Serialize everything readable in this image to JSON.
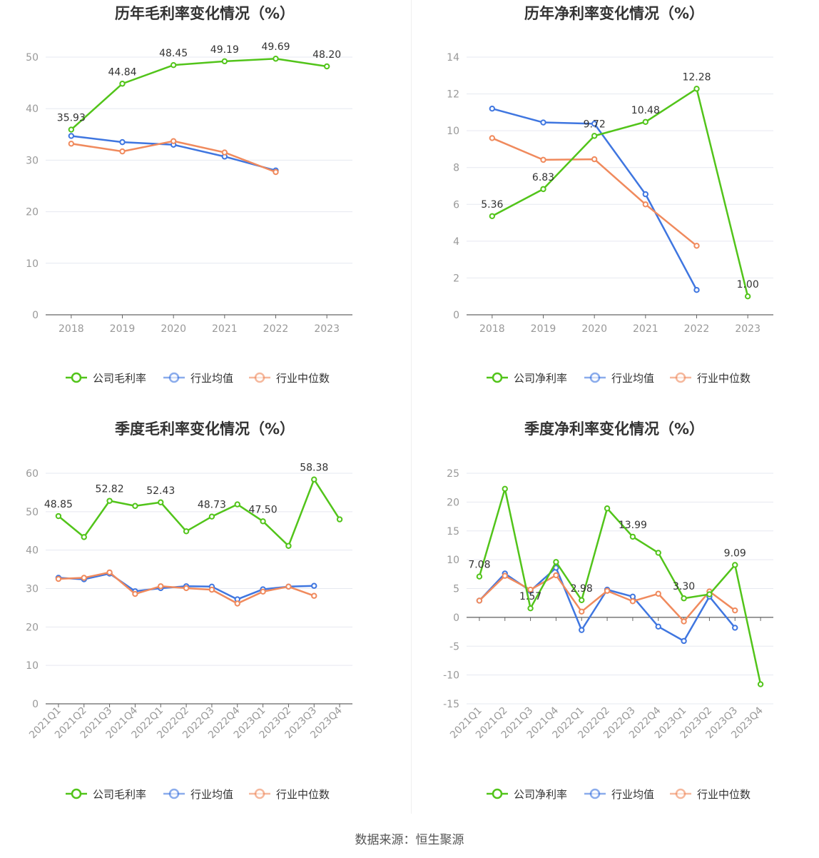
{
  "source": "数据来源：恒生聚源",
  "colors": {
    "company": "#52c41a",
    "avg": "#3f76e0",
    "median": "#f08a5d"
  },
  "legend": {
    "company_gross": "公司毛利率",
    "company_net": "公司净利率",
    "avg": "行业均值",
    "median": "行业中位数"
  },
  "chart_data": [
    {
      "type": "line",
      "title": "历年毛利率变化情况（%）",
      "x": [
        "2018",
        "2019",
        "2020",
        "2021",
        "2022",
        "2023"
      ],
      "ylim": [
        0,
        50
      ],
      "yticks": [
        0,
        10,
        20,
        30,
        40,
        50
      ],
      "grid": true,
      "legend_position": "bottom",
      "series": [
        {
          "name": "公司毛利率",
          "values": [
            35.93,
            44.84,
            48.45,
            49.19,
            49.69,
            48.2
          ],
          "labels": [
            "35.93",
            "44.84",
            "48.45",
            "49.19",
            "49.69",
            "48.20"
          ]
        },
        {
          "name": "行业均值",
          "values": [
            34.7,
            33.5,
            33.0,
            30.7,
            28.0,
            null
          ]
        },
        {
          "name": "行业中位数",
          "values": [
            33.2,
            31.7,
            33.7,
            31.5,
            27.7,
            null
          ]
        }
      ]
    },
    {
      "type": "line",
      "title": "历年净利率变化情况（%）",
      "x": [
        "2018",
        "2019",
        "2020",
        "2021",
        "2022",
        "2023"
      ],
      "ylim": [
        0,
        14
      ],
      "yticks": [
        0,
        2,
        4,
        6,
        8,
        10,
        12,
        14
      ],
      "grid": true,
      "legend_position": "bottom",
      "series": [
        {
          "name": "公司净利率",
          "values": [
            5.36,
            6.83,
            9.72,
            10.48,
            12.28,
            1.0
          ],
          "labels": [
            "5.36",
            "6.83",
            "9.72",
            "10.48",
            "12.28",
            "1.00"
          ]
        },
        {
          "name": "行业均值",
          "values": [
            11.2,
            10.45,
            10.38,
            6.55,
            1.35,
            null
          ]
        },
        {
          "name": "行业中位数",
          "values": [
            9.6,
            8.42,
            8.45,
            6.0,
            3.75,
            null
          ]
        }
      ]
    },
    {
      "type": "line",
      "title": "季度毛利率变化情况（%）",
      "x": [
        "2021Q1",
        "2021Q2",
        "2021Q3",
        "2021Q4",
        "2022Q1",
        "2022Q2",
        "2022Q3",
        "2022Q4",
        "2023Q1",
        "2023Q2",
        "2023Q3",
        "2023Q4"
      ],
      "ylim": [
        0,
        60
      ],
      "yticks": [
        0,
        10,
        20,
        30,
        40,
        50,
        60
      ],
      "grid": true,
      "legend_position": "bottom",
      "series": [
        {
          "name": "公司毛利率",
          "values": [
            48.85,
            43.4,
            52.82,
            51.5,
            52.43,
            44.9,
            48.73,
            51.9,
            47.5,
            41.1,
            58.38,
            48.0
          ],
          "labels": [
            "48.85",
            "",
            "52.82",
            "",
            "52.43",
            "",
            "48.73",
            "",
            "47.50",
            "",
            "58.38",
            ""
          ]
        },
        {
          "name": "行业均值",
          "values": [
            32.8,
            32.4,
            33.9,
            29.3,
            30.1,
            30.6,
            30.5,
            27.2,
            29.8,
            30.5,
            30.7,
            null
          ]
        },
        {
          "name": "行业中位数",
          "values": [
            32.5,
            32.8,
            34.2,
            28.6,
            30.6,
            30.1,
            29.7,
            26.1,
            29.2,
            30.5,
            28.1,
            null
          ]
        }
      ]
    },
    {
      "type": "line",
      "title": "季度净利率变化情况（%）",
      "x": [
        "2021Q1",
        "2021Q2",
        "2021Q3",
        "2021Q4",
        "2022Q1",
        "2022Q2",
        "2022Q3",
        "2022Q4",
        "2023Q1",
        "2023Q2",
        "2023Q3",
        "2023Q4"
      ],
      "ylim": [
        -15,
        25
      ],
      "yticks": [
        -15,
        -10,
        -5,
        0,
        5,
        10,
        15,
        20,
        25
      ],
      "grid": true,
      "legend_position": "bottom",
      "series": [
        {
          "name": "公司净利率",
          "values": [
            7.08,
            22.3,
            1.57,
            9.6,
            2.98,
            18.9,
            13.99,
            11.2,
            3.3,
            4.0,
            9.09,
            -11.6
          ],
          "labels": [
            "7.08",
            "",
            "1.57",
            "",
            "2.98",
            "",
            "13.99",
            "",
            "3.30",
            "",
            "9.09",
            ""
          ]
        },
        {
          "name": "行业均值",
          "values": [
            2.9,
            7.6,
            4.6,
            8.6,
            -2.2,
            4.8,
            3.6,
            -1.6,
            -4.1,
            3.6,
            -1.8,
            null
          ]
        },
        {
          "name": "行业中位数",
          "values": [
            2.9,
            7.2,
            4.8,
            7.3,
            1.0,
            4.6,
            2.8,
            4.1,
            -0.7,
            4.5,
            1.2,
            null
          ]
        }
      ]
    }
  ]
}
